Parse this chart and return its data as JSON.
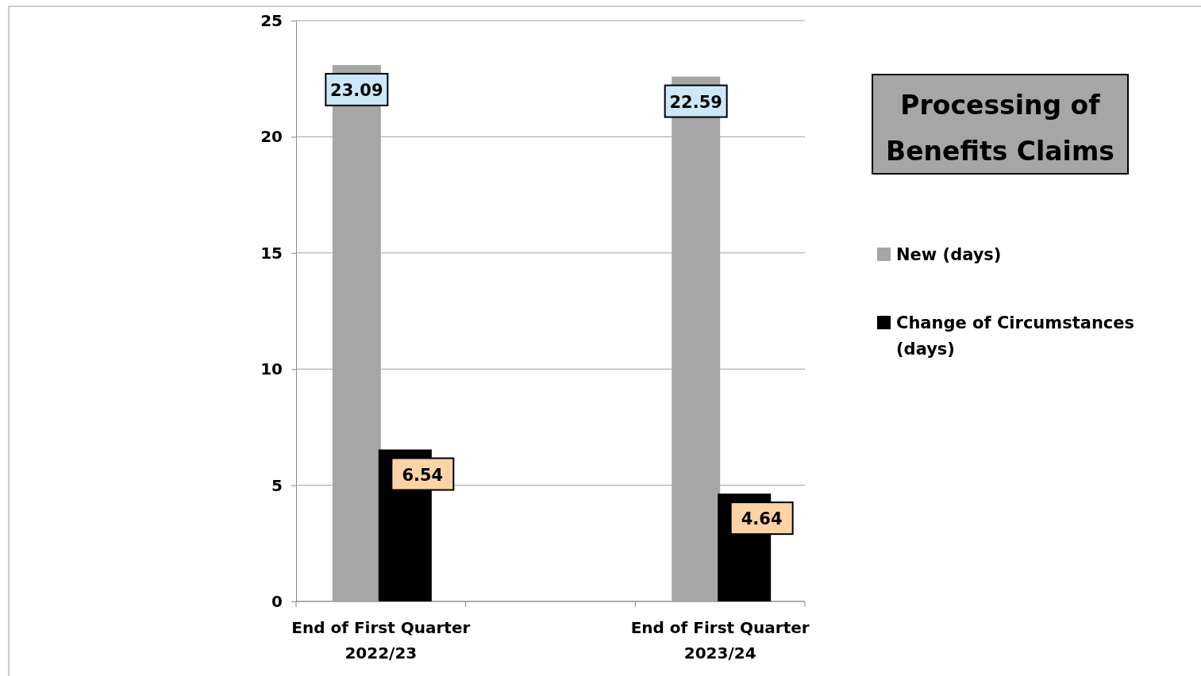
{
  "chart_data": {
    "type": "bar",
    "title": "Processing of Benefits Claims",
    "categories": [
      "End of First Quarter 2022/23",
      null,
      "End of First Quarter 2023/24"
    ],
    "series": [
      {
        "name": "New (days)",
        "color": "#a6a6a6",
        "values": [
          23.09,
          null,
          22.59
        ]
      },
      {
        "name": "Change of Circumstances (days)",
        "color": "#000000",
        "values": [
          6.54,
          null,
          4.64
        ]
      }
    ],
    "ylim": [
      0,
      25
    ],
    "yticks": [
      0,
      5,
      10,
      15,
      20,
      25
    ],
    "grid": "y",
    "legend": "right",
    "data_labels": true
  }
}
